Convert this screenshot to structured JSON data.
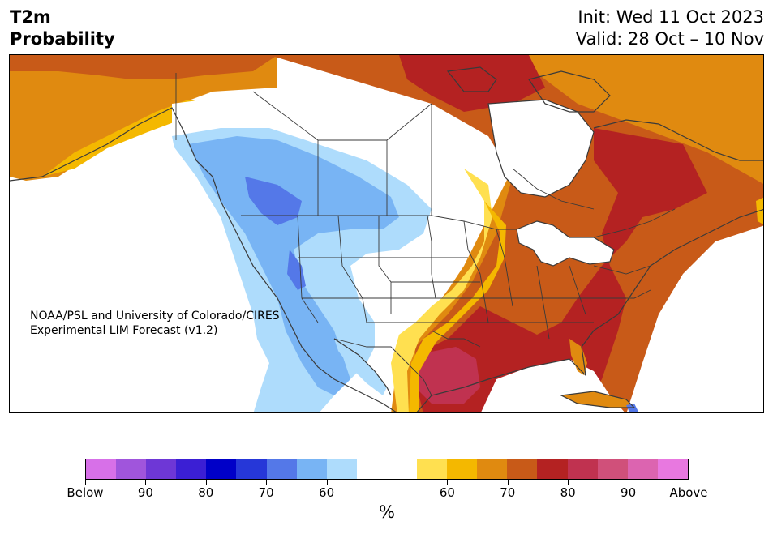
{
  "header": {
    "title_line1": "T2m",
    "title_line2": "Probability",
    "init": "Init: Wed 11 Oct 2023",
    "valid": "Valid: 28 Oct – 10 Nov"
  },
  "credit": {
    "line1": "NOAA/PSL and University of Colorado/CIRES",
    "line2": "Experimental LIM Forecast (v1.2)"
  },
  "colorbar": {
    "colors": [
      "#d770e8",
      "#a055dc",
      "#6e37d6",
      "#3b1fd4",
      "#0000c8",
      "#2637d8",
      "#5478e8",
      "#78b4f4",
      "#aedcfc",
      "#ffffff",
      "#ffffff",
      "#ffe050",
      "#f4b800",
      "#e08a10",
      "#c85a18",
      "#b42222",
      "#c03250",
      "#d0507a",
      "#dc64b0",
      "#e878e0"
    ],
    "labels": [
      "Below",
      "90",
      "80",
      "70",
      "60",
      "60",
      "70",
      "80",
      "90",
      "Above"
    ],
    "unit": "%"
  },
  "legend_colors": {
    "below_light": "#aedcfc",
    "below_mid": "#78b4f4",
    "below_strong": "#5478e8",
    "above_light": "#ffe050",
    "above_60": "#f4b800",
    "above_65": "#e08a10",
    "above_70": "#c85a18",
    "above_80": "#b42222",
    "above_85": "#c03250"
  }
}
